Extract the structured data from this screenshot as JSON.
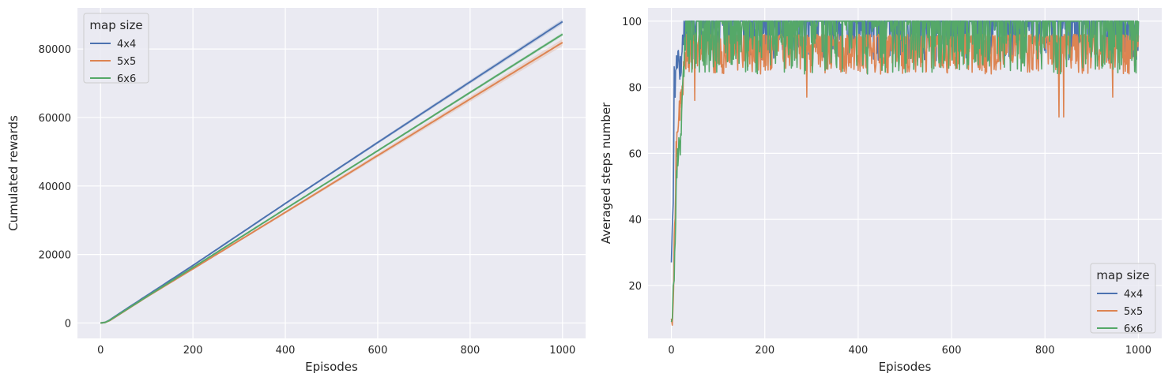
{
  "chart_data": [
    {
      "type": "line",
      "xlabel": "Episodes",
      "ylabel": "Cumulated rewards",
      "xlim": [
        -50,
        1050
      ],
      "ylim": [
        -4500,
        92000
      ],
      "xticks": [
        0,
        200,
        400,
        600,
        800,
        1000
      ],
      "yticks": [
        0,
        20000,
        40000,
        60000,
        80000
      ],
      "grid": true,
      "legend_title": "map size",
      "legend_position": "top-left",
      "series": [
        {
          "name": "4x4",
          "color": "#4c72b0",
          "x": [
            0,
            10,
            20,
            50,
            100,
            200,
            400,
            600,
            800,
            1000
          ],
          "y": [
            0,
            200,
            900,
            3600,
            8000,
            16800,
            34900,
            52700,
            70400,
            88000
          ],
          "band": 700
        },
        {
          "name": "5x5",
          "color": "#dd8452",
          "x": [
            0,
            10,
            20,
            50,
            100,
            200,
            400,
            600,
            800,
            1000
          ],
          "y": [
            0,
            150,
            700,
            3300,
            7600,
            15800,
            32300,
            48900,
            65400,
            81900
          ],
          "band": 1000
        },
        {
          "name": "6x6",
          "color": "#55a868",
          "x": [
            0,
            10,
            20,
            50,
            100,
            200,
            400,
            600,
            800,
            1000
          ],
          "y": [
            0,
            170,
            800,
            3400,
            7700,
            16200,
            33300,
            50300,
            67300,
            84300
          ],
          "band": 500
        }
      ]
    },
    {
      "type": "line",
      "xlabel": "Episodes",
      "ylabel": "Averaged steps number",
      "xlim": [
        -50,
        1050
      ],
      "ylim": [
        4,
        104
      ],
      "xticks": [
        0,
        200,
        400,
        600,
        800,
        1000
      ],
      "yticks": [
        20,
        40,
        60,
        80,
        100
      ],
      "grid": true,
      "legend_title": "map size",
      "legend_position": "bottom-right",
      "series": [
        {
          "name": "4x4",
          "color": "#4c72b0",
          "x": [
            0,
            2,
            4,
            6,
            8,
            10,
            15,
            20,
            25,
            30,
            1000
          ],
          "y": [
            27,
            38,
            45,
            83,
            79,
            87,
            91,
            84,
            96,
            100,
            100
          ],
          "noise_min": 84,
          "noise_max": 100
        },
        {
          "name": "5x5",
          "color": "#dd8452",
          "x": [
            0,
            2,
            4,
            6,
            8,
            10,
            15,
            20,
            25,
            30,
            1000
          ],
          "y": [
            10,
            8,
            15,
            30,
            45,
            60,
            70,
            75,
            82,
            88,
            95
          ],
          "noise_min": 77,
          "noise_max": 96,
          "dips": [
            [
              50,
              76
            ],
            [
              290,
              77
            ],
            [
              830,
              71
            ],
            [
              840,
              71
            ],
            [
              945,
              77
            ]
          ]
        },
        {
          "name": "6x6",
          "color": "#55a868",
          "x": [
            0,
            2,
            4,
            6,
            8,
            10,
            15,
            20,
            25,
            30,
            1000
          ],
          "y": [
            9,
            10,
            20,
            25,
            30,
            50,
            62,
            65,
            80,
            96,
            100
          ],
          "noise_min": 80,
          "noise_max": 100
        }
      ]
    }
  ]
}
